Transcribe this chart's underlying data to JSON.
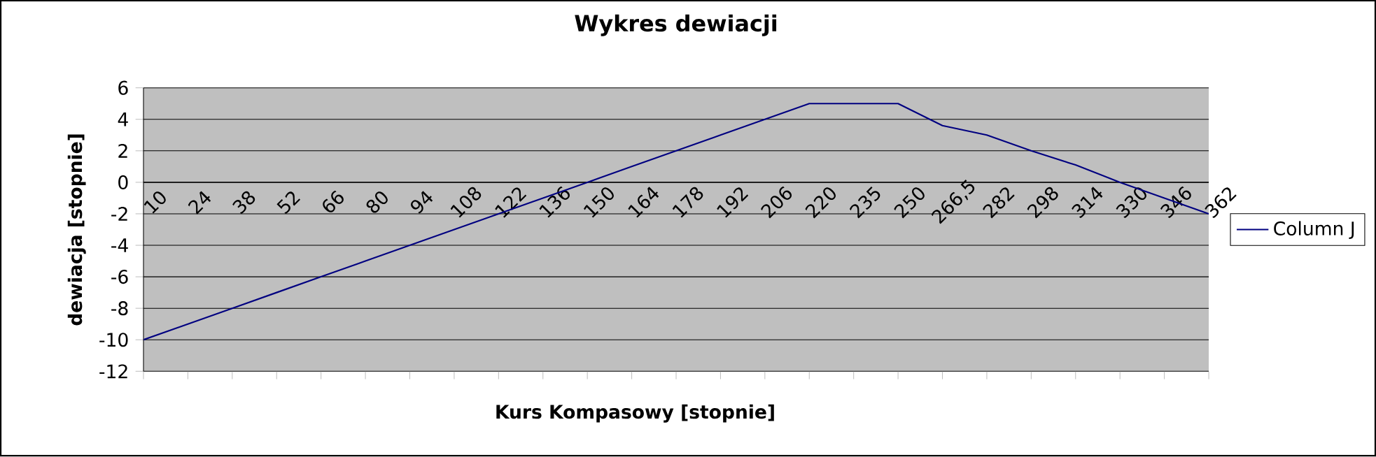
{
  "chart_data": {
    "type": "line",
    "title": "Wykres dewiacji",
    "xlabel": "Kurs Kompasowy  [stopnie]",
    "ylabel": "dewiacja [stopnie]",
    "categories": [
      "10",
      "24",
      "38",
      "52",
      "66",
      "80",
      "94",
      "108",
      "122",
      "136",
      "150",
      "164",
      "178",
      "192",
      "206",
      "220",
      "235",
      "250",
      "266,5",
      "282",
      "298",
      "314",
      "330",
      "346",
      "362"
    ],
    "series": [
      {
        "name": "Column J",
        "color": "#000080",
        "values": [
          -10,
          -9,
          -8,
          -7,
          -6,
          -5,
          -4,
          -3,
          -2,
          -1,
          0,
          1,
          2,
          3,
          4,
          5,
          5,
          5,
          3.6,
          3,
          2,
          1.1,
          0,
          -1,
          -2
        ]
      }
    ],
    "ylim": [
      -12,
      6
    ],
    "yticks": [
      -12,
      -10,
      -8,
      -6,
      -4,
      -2,
      0,
      2,
      4,
      6
    ],
    "grid": "y",
    "legend": "right",
    "marker": "none",
    "line_style": "solid"
  }
}
